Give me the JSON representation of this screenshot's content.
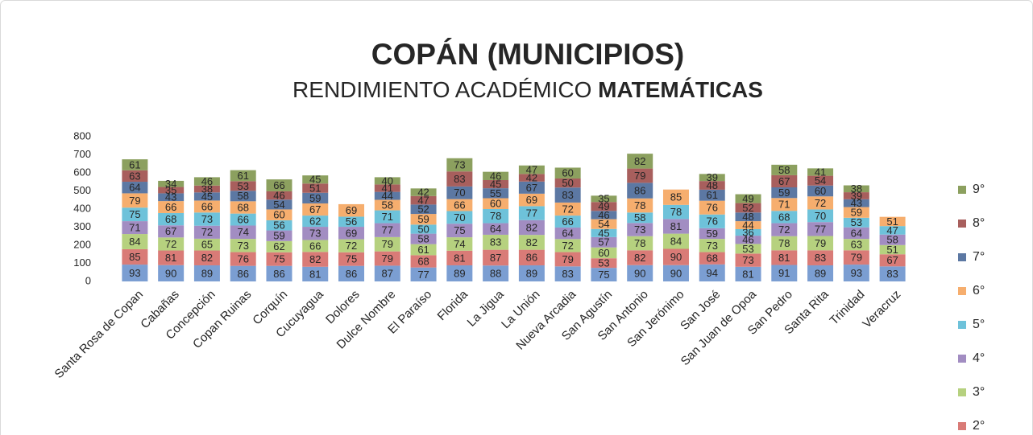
{
  "chart_data": {
    "type": "stacked_bar",
    "title": "COPÁN (MUNICIPIOS)",
    "subtitle": "RENDIMIENTO ACADÉMICO",
    "subtitle_bold": "MATEMÁTICAS",
    "categories": [
      "Santa Rosa de Copan",
      "Cabañas",
      "Concepción",
      "Copan Ruinas",
      "Corquín",
      "Cucuyagua",
      "Dolores",
      "Dulce Nombre",
      "El Paraíso",
      "Florida",
      "La Jigua",
      "La Unión",
      "Nueva Arcadia",
      "San Agustín",
      "San Antonio",
      "San Jerónimo",
      "San José",
      "San Juan de Opoa",
      "San Pedro",
      "Santa Rita",
      "Trinidad",
      "Veracruz"
    ],
    "series": [
      {
        "color": "#7b9ed2",
        "values": [
          93,
          90,
          89,
          86,
          86,
          81,
          86,
          87,
          77,
          89,
          88,
          89,
          83,
          75,
          90,
          90,
          94,
          81,
          91,
          89,
          93,
          83
        ]
      },
      {
        "name": "2°",
        "color": "#d97b77",
        "values": [
          85,
          81,
          82,
          76,
          75,
          82,
          75,
          79,
          68,
          81,
          87,
          86,
          79,
          53,
          82,
          90,
          68,
          73,
          81,
          83,
          79,
          67
        ]
      },
      {
        "name": "3°",
        "color": "#b6d17f",
        "values": [
          84,
          72,
          65,
          73,
          62,
          66,
          72,
          79,
          61,
          74,
          83,
          82,
          72,
          60,
          78,
          84,
          73,
          53,
          78,
          79,
          63,
          51
        ]
      },
      {
        "name": "4°",
        "color": "#a28dc2",
        "values": [
          71,
          67,
          72,
          74,
          59,
          73,
          69,
          77,
          58,
          75,
          64,
          82,
          64,
          57,
          73,
          81,
          59,
          46,
          72,
          77,
          64,
          58
        ]
      },
      {
        "name": "5°",
        "color": "#6ec2da",
        "values": [
          75,
          68,
          73,
          66,
          56,
          62,
          56,
          71,
          50,
          70,
          78,
          77,
          66,
          45,
          58,
          78,
          76,
          36,
          68,
          70,
          53,
          47
        ]
      },
      {
        "name": "6°",
        "color": "#f6ae6e",
        "values": [
          79,
          66,
          66,
          68,
          60,
          67,
          69,
          58,
          59,
          66,
          60,
          69,
          72,
          54,
          78,
          85,
          76,
          44,
          71,
          72,
          59,
          51
        ]
      },
      {
        "name": "7°",
        "color": "#5c78a3",
        "values": [
          64,
          43,
          45,
          58,
          54,
          59,
          null,
          44,
          52,
          70,
          55,
          67,
          83,
          46,
          86,
          null,
          61,
          48,
          59,
          60,
          43,
          null
        ]
      },
      {
        "name": "8°",
        "color": "#a85f5d",
        "values": [
          63,
          35,
          38,
          53,
          46,
          51,
          null,
          41,
          47,
          83,
          45,
          42,
          50,
          49,
          79,
          null,
          48,
          52,
          67,
          54,
          39,
          null
        ]
      },
      {
        "name": "9°",
        "color": "#8ca05f",
        "values": [
          61,
          34,
          46,
          61,
          66,
          45,
          null,
          40,
          42,
          73,
          46,
          47,
          60,
          35,
          82,
          null,
          39,
          49,
          58,
          41,
          38,
          null
        ]
      }
    ],
    "ylim": [
      0,
      800
    ],
    "yticks": [
      0,
      100,
      200,
      300,
      400,
      500,
      600,
      700,
      800
    ],
    "grid": false
  }
}
